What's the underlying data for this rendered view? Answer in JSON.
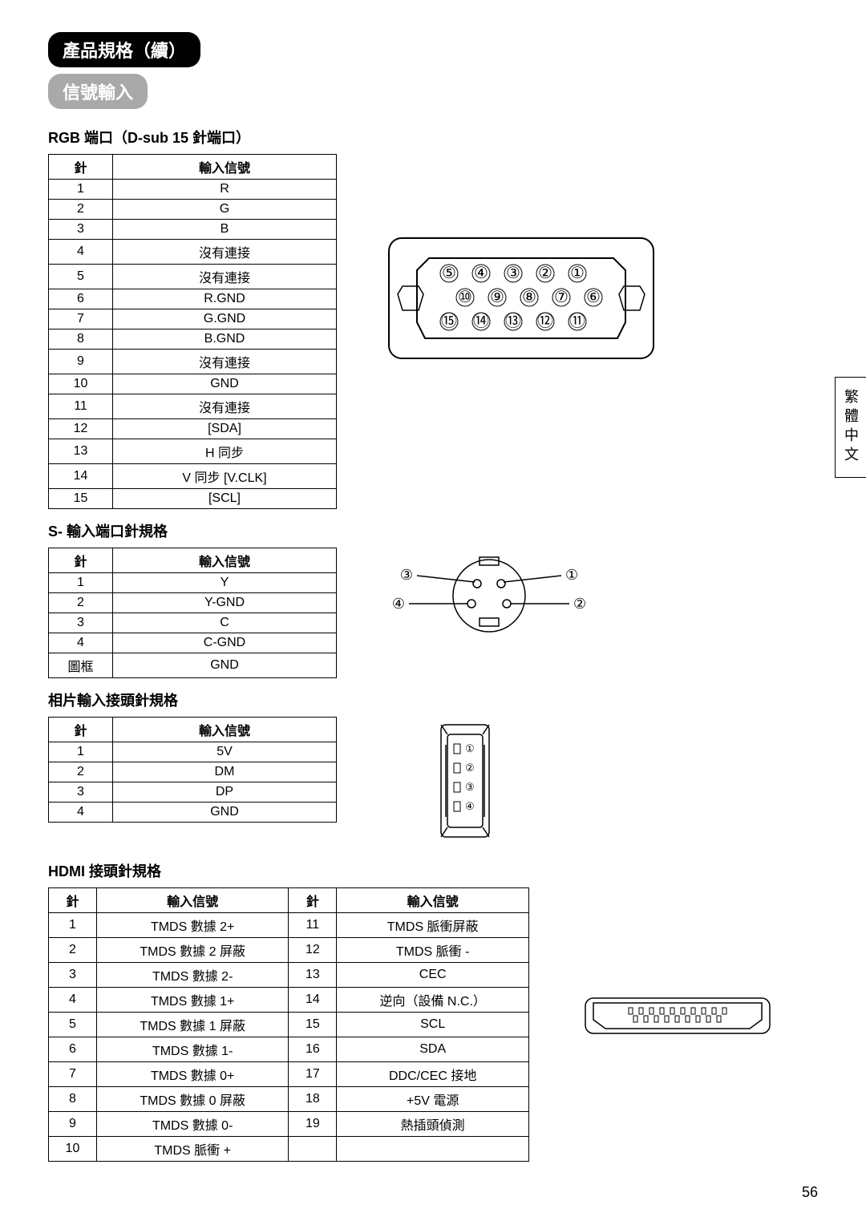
{
  "header": {
    "main_title": "產品規格（續）",
    "sub_title": "信號輸入"
  },
  "sidebar_label": "繁體中文",
  "page_number": "56",
  "rgb": {
    "title": "RGB 端口（D-sub 15 針端口）",
    "col_pin": "針",
    "col_signal": "輸入信號",
    "rows": [
      {
        "pin": "1",
        "sig": "R"
      },
      {
        "pin": "2",
        "sig": "G"
      },
      {
        "pin": "3",
        "sig": "B"
      },
      {
        "pin": "4",
        "sig": "沒有連接"
      },
      {
        "pin": "5",
        "sig": "沒有連接"
      },
      {
        "pin": "6",
        "sig": "R.GND"
      },
      {
        "pin": "7",
        "sig": "G.GND"
      },
      {
        "pin": "8",
        "sig": "B.GND"
      },
      {
        "pin": "9",
        "sig": "沒有連接"
      },
      {
        "pin": "10",
        "sig": "GND"
      },
      {
        "pin": "11",
        "sig": "沒有連接"
      },
      {
        "pin": "12",
        "sig": "[SDA]"
      },
      {
        "pin": "13",
        "sig": "H 同步"
      },
      {
        "pin": "14",
        "sig": "V 同步 [V.CLK]"
      },
      {
        "pin": "15",
        "sig": "[SCL]"
      }
    ],
    "diagram_pins": [
      "⑤",
      "④",
      "③",
      "②",
      "①",
      "⑩",
      "⑨",
      "⑧",
      "⑦",
      "⑥",
      "⑮",
      "⑭",
      "⑬",
      "⑫",
      "⑪"
    ]
  },
  "svideo": {
    "title": "S- 輸入端口針規格",
    "col_pin": "針",
    "col_signal": "輸入信號",
    "rows": [
      {
        "pin": "1",
        "sig": "Y"
      },
      {
        "pin": "2",
        "sig": "Y-GND"
      },
      {
        "pin": "3",
        "sig": "C"
      },
      {
        "pin": "4",
        "sig": "C-GND"
      },
      {
        "pin": "圖框",
        "sig": "GND"
      }
    ],
    "diagram_labels": [
      "①",
      "②",
      "③",
      "④"
    ]
  },
  "photo": {
    "title": "相片輸入接頭針規格",
    "col_pin": "針",
    "col_signal": "輸入信號",
    "rows": [
      {
        "pin": "1",
        "sig": "5V"
      },
      {
        "pin": "2",
        "sig": "DM"
      },
      {
        "pin": "3",
        "sig": "DP"
      },
      {
        "pin": "4",
        "sig": "GND"
      }
    ],
    "diagram_labels": [
      "①",
      "②",
      "③",
      "④"
    ]
  },
  "hdmi": {
    "title": "HDMI 接頭針規格",
    "col_pin": "針",
    "col_signal": "輸入信號",
    "rows": [
      {
        "p1": "1",
        "s1": "TMDS 數據 2+",
        "p2": "11",
        "s2": "TMDS 脈衝屏蔽"
      },
      {
        "p1": "2",
        "s1": "TMDS 數據 2 屏蔽",
        "p2": "12",
        "s2": "TMDS 脈衝 -"
      },
      {
        "p1": "3",
        "s1": "TMDS 數據 2-",
        "p2": "13",
        "s2": "CEC"
      },
      {
        "p1": "4",
        "s1": "TMDS 數據 1+",
        "p2": "14",
        "s2": "逆向（設備 N.C.）"
      },
      {
        "p1": "5",
        "s1": "TMDS 數據 1 屏蔽",
        "p2": "15",
        "s2": "SCL"
      },
      {
        "p1": "6",
        "s1": "TMDS 數據 1-",
        "p2": "16",
        "s2": "SDA"
      },
      {
        "p1": "7",
        "s1": "TMDS 數據 0+",
        "p2": "17",
        "s2": "DDC/CEC 接地"
      },
      {
        "p1": "8",
        "s1": "TMDS 數據 0 屏蔽",
        "p2": "18",
        "s2": "+5V 電源"
      },
      {
        "p1": "9",
        "s1": "TMDS 數據 0-",
        "p2": "19",
        "s2": "熱插頭偵測"
      },
      {
        "p1": "10",
        "s1": "TMDS 脈衝 +",
        "p2": "",
        "s2": ""
      }
    ]
  },
  "style": {
    "border_color": "#000000",
    "background": "#ffffff",
    "pill_black": "#000000",
    "pill_grey": "#a9a9a9",
    "font_title_pt": 18,
    "font_table_pt": 16
  }
}
